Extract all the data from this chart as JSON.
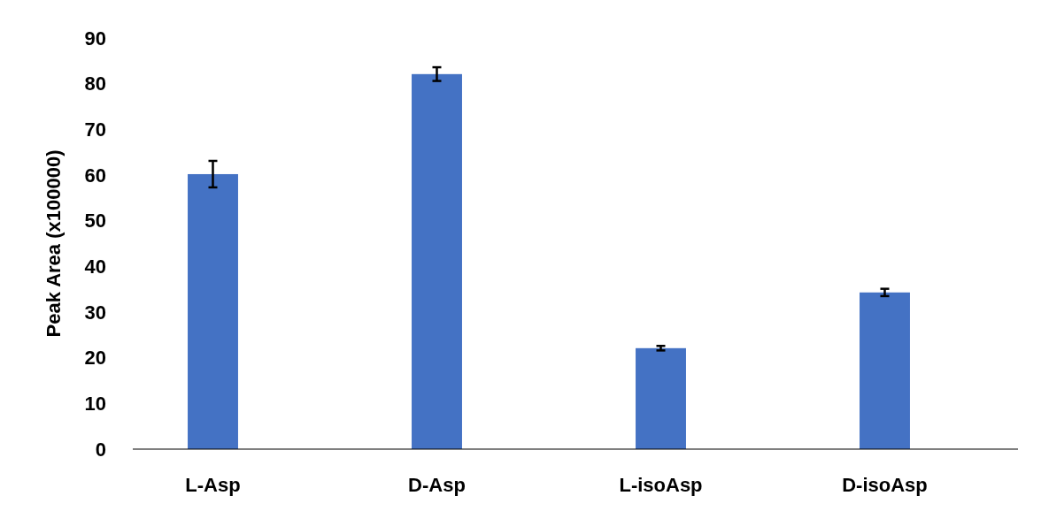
{
  "chart_data": {
    "type": "bar",
    "ylabel": "Peak Area (x100000)",
    "categories": [
      "L-Asp",
      "D-Asp",
      "L-isoAsp",
      "D-isoAsp"
    ],
    "values": [
      60.2,
      82.1,
      22.1,
      34.3
    ],
    "errors": [
      2.9,
      1.5,
      0.5,
      0.8
    ],
    "color": "#4472c4",
    "ylim": [
      0,
      90
    ],
    "yticks": [
      0,
      10,
      20,
      30,
      40,
      50,
      60,
      70,
      80,
      90
    ],
    "grid": false
  }
}
